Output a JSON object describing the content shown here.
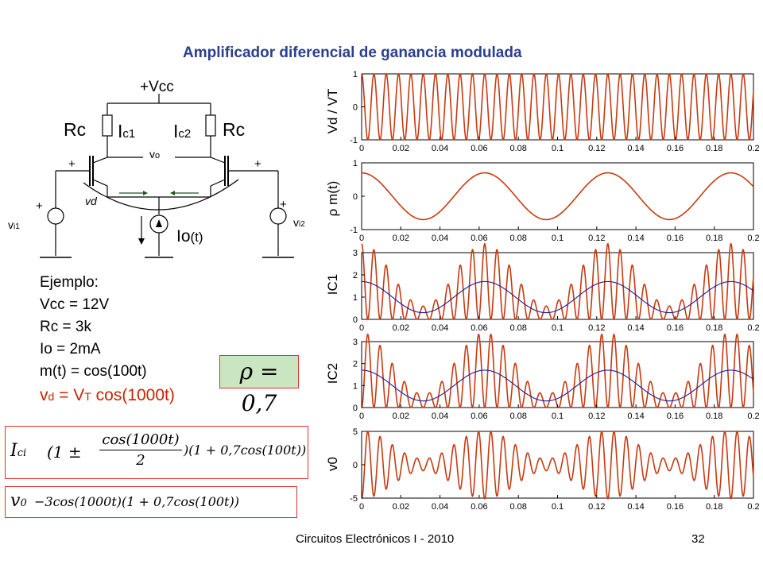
{
  "title": "Amplificador diferencial de ganancia modulada",
  "circuit": {
    "vcc": "+Vcc",
    "rc_left": "Rc",
    "rc_right": "Rc",
    "ic1_main": "I",
    "ic1_sub": "c1",
    "ic2_main": "I",
    "ic2_sub": "c2",
    "vo_main": "v",
    "vo_sub": "o",
    "plus": "+",
    "vd": "vd",
    "vi1_main": "v",
    "vi1_sub": "i1",
    "vi2_main": "v",
    "vi2_sub": "i2",
    "io_main": "Io",
    "io_paren": "(t)"
  },
  "example": {
    "heading": "Ejemplo:",
    "vcc": "Vcc = 12V",
    "rc": "Rc = 3k",
    "io": "Io = 2mA",
    "mt": "m(t) = cos(100t)",
    "vd_v": "v",
    "vd_sub": "d",
    "vd_eq": " = V",
    "vd_T": "T",
    "vd_cos": " cos(1000t)",
    "vd_color": "#cc2200"
  },
  "equations": {
    "rho": "ρ = 0,7",
    "ic_lhs": "I",
    "ic_sub": "ci",
    "ic_rest": "(1 ±",
    "ic_num": "cos(1000t)",
    "ic_den": "2",
    "ic_tail": ")(1 + 0,7cos(100t))",
    "vo_lhs": "v",
    "vo_sub": "0",
    "vo_rest": "−3cos(1000t)(1 + 0,7cos(100t))",
    "box_color": "#e03030",
    "rho_bg": "#c9e6c0"
  },
  "footer": {
    "left": "Circuitos Electrónicos I - 2010",
    "page": "32"
  },
  "colors": {
    "signal": "#c83a10",
    "envelope": "#1a1aa0"
  },
  "chart_data": [
    {
      "type": "line",
      "ylabel": "Vd / VT",
      "x_range": [
        0,
        0.2
      ],
      "ylim": [
        -1,
        1
      ],
      "yticks": [
        "1",
        "0",
        "-1"
      ],
      "xticks": [
        "0",
        "0.02",
        "0.04",
        "0.06",
        "0.08",
        "0.1",
        "0.12",
        "0.14",
        "0.16",
        "0.18",
        "0.2"
      ],
      "series": [
        {
          "expr": "cos(1000t)"
        }
      ]
    },
    {
      "type": "line",
      "ylabel": "ρ m(t)",
      "x_range": [
        0,
        0.2
      ],
      "ylim": [
        -1,
        1
      ],
      "yticks": [
        "1",
        "0",
        "-1"
      ],
      "xticks": [
        "0",
        "0.02",
        "0.04",
        "0.06",
        "0.08",
        "0.1",
        "0.12",
        "0.14",
        "0.16",
        "0.18",
        "0.2"
      ],
      "series": [
        {
          "expr": "0.7cos(100t)"
        }
      ]
    },
    {
      "type": "line",
      "ylabel": "IC1",
      "x_range": [
        0,
        0.2
      ],
      "ylim": [
        0,
        3
      ],
      "yticks": [
        "3",
        "2",
        "1",
        "0"
      ],
      "xticks": [
        "0",
        "0.02",
        "0.04",
        "0.06",
        "0.08",
        "0.1",
        "0.12",
        "0.14",
        "0.16",
        "0.18",
        "0.2"
      ],
      "series": [
        {
          "expr": "(1+cos(1000t))(1+0.7cos(100t))"
        },
        {
          "expr": "1+0.7cos(100t)"
        }
      ]
    },
    {
      "type": "line",
      "ylabel": "IC2",
      "x_range": [
        0,
        0.2
      ],
      "ylim": [
        0,
        3
      ],
      "yticks": [
        "3",
        "2",
        "1",
        "0"
      ],
      "xticks": [
        "0",
        "0.02",
        "0.04",
        "0.06",
        "0.08",
        "0.1",
        "0.12",
        "0.14",
        "0.16",
        "0.18",
        "0.2"
      ],
      "series": [
        {
          "expr": "(1-cos(1000t))(1+0.7cos(100t))"
        },
        {
          "expr": "1+0.7cos(100t)"
        }
      ]
    },
    {
      "type": "line",
      "ylabel": "v0",
      "x_range": [
        0,
        0.2
      ],
      "ylim": [
        -5,
        5
      ],
      "yticks": [
        "5",
        "0",
        "-5"
      ],
      "xticks": [
        "0",
        "0.02",
        "0.04",
        "0.06",
        "0.08",
        "0.1",
        "0.12",
        "0.14",
        "0.16",
        "0.18",
        "0.2"
      ],
      "series": [
        {
          "expr": "-3cos(1000t)(1+0.7cos(100t))"
        }
      ]
    }
  ]
}
